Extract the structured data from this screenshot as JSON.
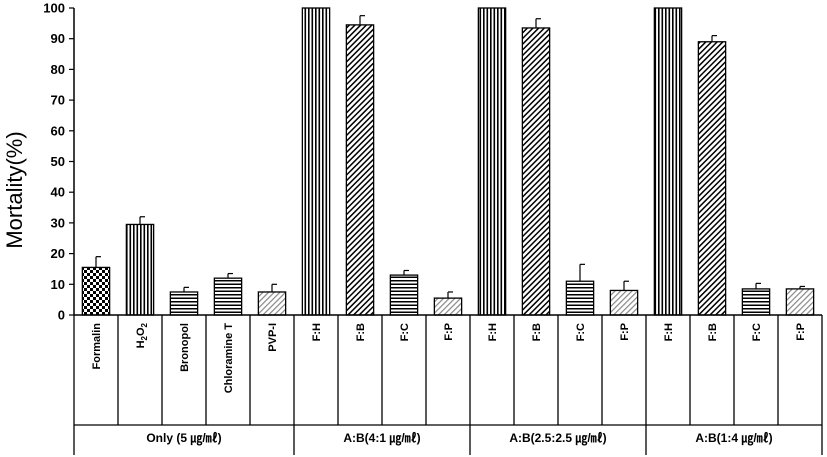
{
  "chart_data": {
    "type": "bar",
    "ylabel": "Mortality(%)",
    "ylim": [
      0,
      100
    ],
    "yticks": [
      0,
      10,
      20,
      30,
      40,
      50,
      60,
      70,
      80,
      90,
      100
    ],
    "grid": false,
    "legend": "none",
    "categories": [
      "Formalin",
      "H2O2",
      "Bronopol",
      "Chloramine T",
      "PVP-I",
      "F:H",
      "F:B",
      "F:C",
      "F:P",
      "F:H",
      "F:B",
      "F:C",
      "F:P",
      "F:H",
      "F:B",
      "F:C",
      "F:P"
    ],
    "values": [
      15.5,
      29.5,
      7.5,
      12,
      7.5,
      100,
      94.5,
      13,
      5.5,
      100,
      93.5,
      11,
      8,
      100,
      89,
      8.5,
      8.5
    ],
    "errors": [
      3.5,
      2.5,
      1.5,
      1.5,
      2.5,
      0,
      3,
      1.5,
      2,
      0,
      3,
      5.5,
      3,
      0,
      2,
      1.8,
      0.8
    ],
    "patterns": [
      "checker",
      "vertical",
      "horizontal",
      "horizontal",
      "diagonal-light",
      "vertical",
      "diagonal",
      "horizontal",
      "diagonal-light",
      "vertical",
      "diagonal",
      "horizontal",
      "diagonal-light",
      "vertical",
      "diagonal",
      "horizontal",
      "diagonal-light"
    ],
    "groups": [
      {
        "label": "Only (5 ㎍/㎖)",
        "start": 0,
        "count": 5
      },
      {
        "label": "A:B(4:1 ㎍/㎖)",
        "start": 5,
        "count": 4
      },
      {
        "label": "A:B(2.5:2.5 ㎍/㎖)",
        "start": 9,
        "count": 4
      },
      {
        "label": "A:B(1:4 ㎍/㎖)",
        "start": 13,
        "count": 4
      }
    ]
  },
  "colors": {
    "ink": "#000000",
    "bar_fill": "#ffffff",
    "diag_light": "#888888"
  }
}
